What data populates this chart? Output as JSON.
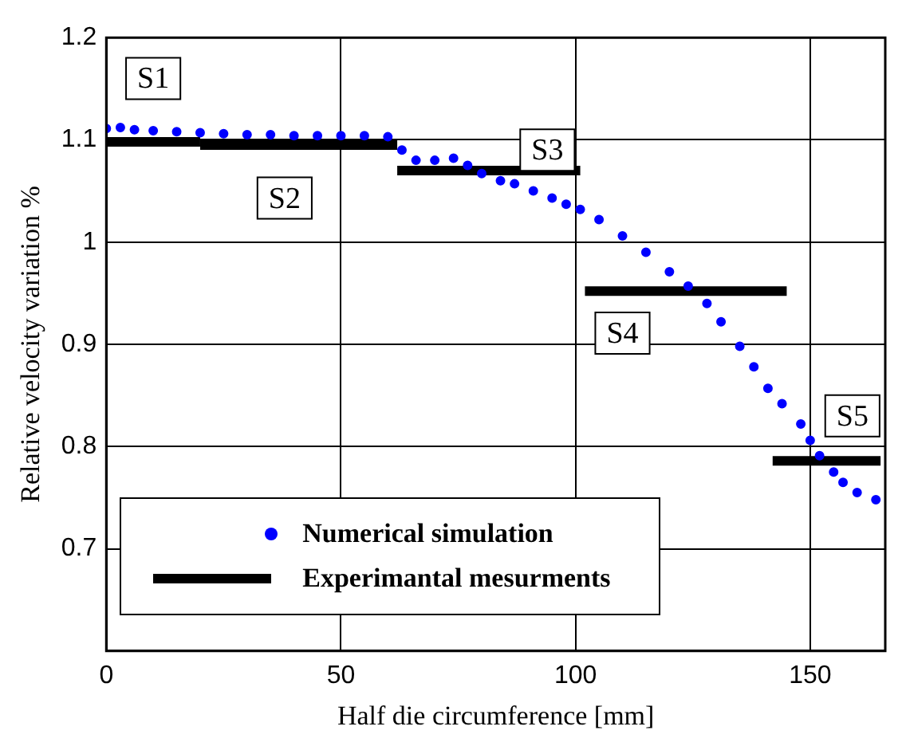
{
  "chart_data": {
    "type": "line",
    "xlabel": "Half die circumference [mm]",
    "ylabel": "Relative velocity variation %",
    "xlim": [
      0,
      166
    ],
    "xticks": [
      0,
      50,
      100,
      150
    ],
    "ylim": [
      0.6,
      1.2
    ],
    "yticks": [
      0.7,
      0.8,
      0.9,
      1,
      1.1,
      1.2
    ],
    "grid": true,
    "legend": "bottom left",
    "series": [
      {
        "name": "Numerical simulation",
        "type": "scatter",
        "marker": "circle",
        "color": "#0000ff",
        "x": [
          0,
          3,
          6,
          10,
          15,
          20,
          25,
          30,
          35,
          40,
          45,
          50,
          55,
          60,
          63,
          66,
          70,
          74,
          77,
          80,
          84,
          87,
          91,
          95,
          98,
          101,
          105,
          110,
          115,
          120,
          124,
          128,
          131,
          135,
          138,
          141,
          144,
          148,
          150,
          152,
          155,
          157,
          160,
          164
        ],
        "values": [
          1.111,
          1.112,
          1.11,
          1.109,
          1.108,
          1.107,
          1.106,
          1.105,
          1.105,
          1.104,
          1.104,
          1.104,
          1.104,
          1.103,
          1.09,
          1.08,
          1.08,
          1.082,
          1.075,
          1.067,
          1.06,
          1.057,
          1.05,
          1.043,
          1.037,
          1.032,
          1.022,
          1.006,
          0.99,
          0.971,
          0.957,
          0.94,
          0.922,
          0.898,
          0.878,
          0.857,
          0.842,
          0.822,
          0.806,
          0.791,
          0.775,
          0.765,
          0.755,
          0.748
        ]
      },
      {
        "name": "Experimantal mesurments",
        "type": "line",
        "marker": "none",
        "line_style": "solid",
        "color": "#000000",
        "x": [
          0,
          20,
          20,
          62,
          62,
          101,
          102,
          145,
          142,
          165
        ],
        "values": [
          1.098,
          1.098,
          1.095,
          1.095,
          1.07,
          1.07,
          0.952,
          0.952,
          0.786,
          0.786
        ]
      }
    ],
    "annotations": [
      {
        "text": "S1",
        "x": 10,
        "y": 1.16
      },
      {
        "text": "S2",
        "x": 38,
        "y": 1.043
      },
      {
        "text": "S3",
        "x": 94,
        "y": 1.09
      },
      {
        "text": "S4",
        "x": 110,
        "y": 0.911
      },
      {
        "text": "S5",
        "x": 159,
        "y": 0.83
      }
    ]
  }
}
